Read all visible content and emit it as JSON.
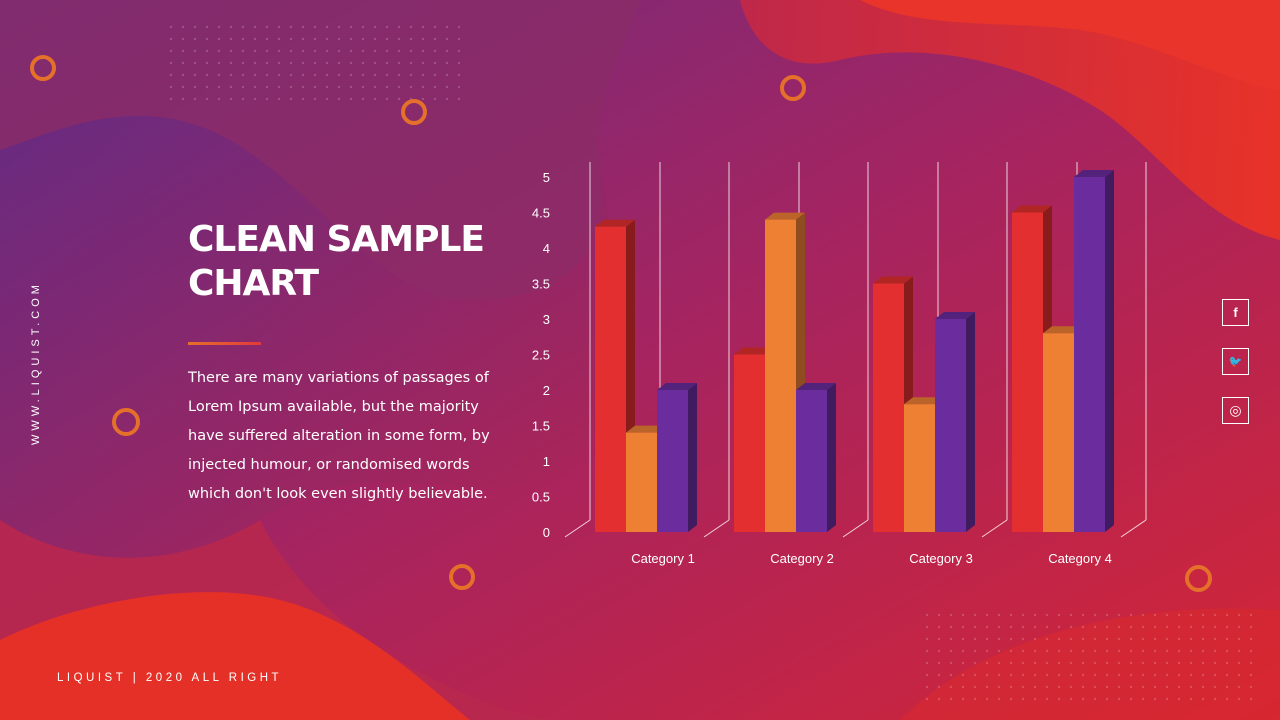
{
  "slide": {
    "title": "CLEAN SAMPLE CHART",
    "body": "There are many variations of passages of Lorem Ipsum available, but the majority have suffered alteration in some form, by injected humour, or randomised words which don't look even slightly believable.",
    "side_url": "WWW.LIQUIST.COM",
    "footer": "LIQUIST | 2020 ALL RIGHT"
  },
  "social": [
    {
      "icon": "facebook-icon",
      "glyph": "f"
    },
    {
      "icon": "twitter-icon",
      "glyph": "🐦"
    },
    {
      "icon": "instagram-icon",
      "glyph": "◎"
    }
  ],
  "colors": {
    "accent_orange": "#e5702a",
    "series_1": "#e32f2f",
    "series_2": "#ee8034",
    "series_3": "#6b2d9e"
  },
  "chart_data": {
    "type": "bar",
    "style": "3d-clustered-column",
    "categories": [
      "Category 1",
      "Category 2",
      "Category 3",
      "Category 4"
    ],
    "series": [
      {
        "values": [
          4.3,
          2.5,
          3.5,
          4.5
        ]
      },
      {
        "values": [
          1.4,
          4.4,
          1.8,
          2.8
        ]
      },
      {
        "values": [
          2.0,
          2.0,
          3.0,
          5.0
        ]
      }
    ],
    "yticks": [
      "0",
      "0.5",
      "1",
      "1.5",
      "2",
      "2.5",
      "3",
      "3.5",
      "4",
      "4.5",
      "5"
    ],
    "ylim": [
      0,
      5
    ],
    "grid": true,
    "legend": "none",
    "title": "",
    "xlabel": "",
    "ylabel": ""
  }
}
